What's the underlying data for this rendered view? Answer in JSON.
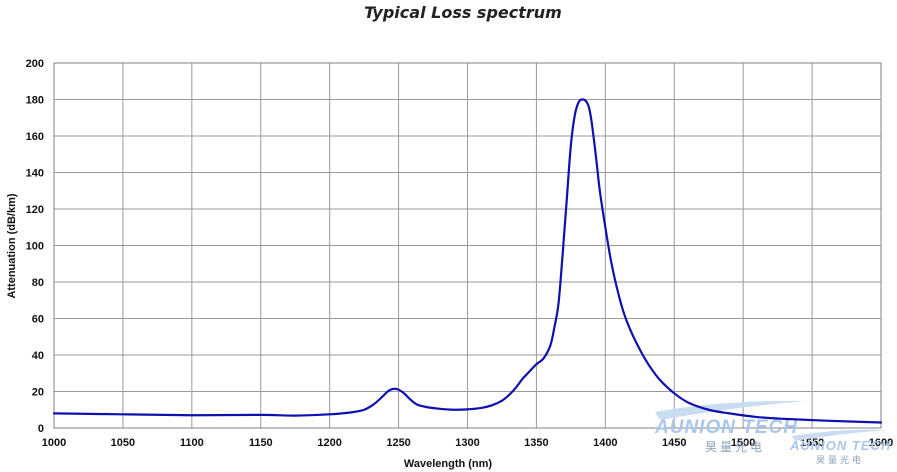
{
  "chart_data": {
    "type": "line",
    "title": "Typical Loss spectrum",
    "xlabel": "Wavelength (nm)",
    "ylabel": "Attenuation (dB/km)",
    "xlim": [
      1000,
      1600
    ],
    "ylim": [
      0,
      200
    ],
    "xticks": [
      1000,
      1050,
      1100,
      1150,
      1200,
      1250,
      1300,
      1350,
      1400,
      1450,
      1500,
      1550,
      1600
    ],
    "yticks": [
      0,
      20,
      40,
      60,
      80,
      100,
      120,
      140,
      160,
      180,
      200
    ],
    "grid": true,
    "line_color": "#1010b0",
    "series": [
      {
        "name": "",
        "x": [
          1000,
          1050,
          1100,
          1150,
          1175,
          1200,
          1215,
          1225,
          1232,
          1238,
          1243,
          1247,
          1250,
          1254,
          1258,
          1263,
          1270,
          1280,
          1290,
          1300,
          1310,
          1318,
          1325,
          1330,
          1335,
          1340,
          1345,
          1350,
          1355,
          1360,
          1363,
          1366,
          1369,
          1372,
          1375,
          1378,
          1381,
          1384,
          1386,
          1388,
          1390,
          1393,
          1396,
          1400,
          1404,
          1408,
          1413,
          1418,
          1425,
          1432,
          1440,
          1450,
          1460,
          1475,
          1490,
          1510,
          1530,
          1560,
          1600
        ],
        "y": [
          8,
          7.5,
          7,
          7.2,
          6.8,
          7.5,
          8.5,
          10,
          13,
          17,
          20.5,
          21.5,
          21,
          19,
          16,
          13,
          11.5,
          10.5,
          10,
          10.2,
          11,
          12.5,
          15,
          18,
          22,
          27,
          31,
          35,
          38,
          45,
          55,
          68,
          95,
          125,
          155,
          172,
          179,
          180,
          179,
          176,
          168,
          150,
          130,
          110,
          92,
          78,
          64,
          54,
          43,
          34,
          26,
          19,
          14,
          10,
          8,
          6,
          5,
          4,
          3
        ]
      }
    ]
  },
  "watermarks": {
    "main_latin": "AUNION TECH",
    "main_cn": "昊量光电",
    "small_latin": "AUNION TECH",
    "small_cn": "昊量光电"
  }
}
